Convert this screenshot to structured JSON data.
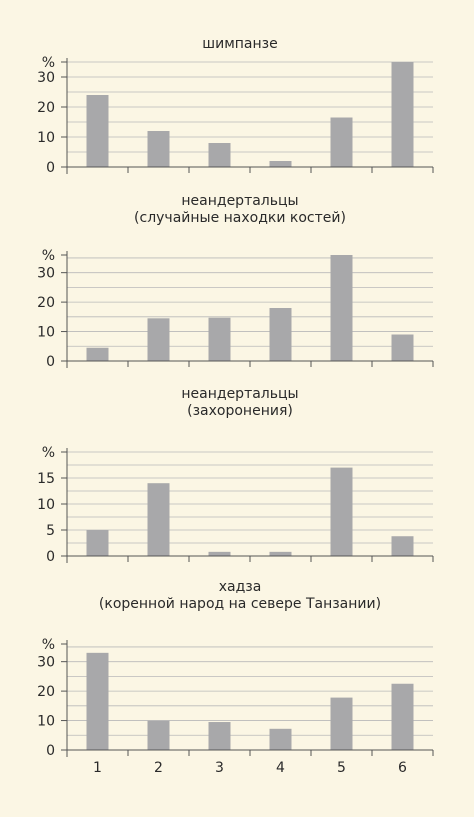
{
  "chart_data": [
    {
      "type": "bar",
      "title": [
        "шимпанзе"
      ],
      "ylabel": "%",
      "categories": [
        "1",
        "2",
        "3",
        "4",
        "5",
        "6"
      ],
      "values": [
        24,
        12,
        8,
        2,
        16.5,
        35
      ],
      "ylim": [
        0,
        35
      ],
      "yticks": [
        0,
        10,
        20,
        30
      ],
      "grid": true,
      "show_x_tick_labels": false
    },
    {
      "type": "bar",
      "title": [
        "неандертальцы",
        "(случайные находки костей)"
      ],
      "ylabel": "%",
      "categories": [
        "1",
        "2",
        "3",
        "4",
        "5",
        "6"
      ],
      "values": [
        4.5,
        14.5,
        14.7,
        18,
        36,
        9
      ],
      "ylim": [
        0,
        36
      ],
      "yticks": [
        0,
        10,
        20,
        30
      ],
      "grid": true,
      "show_x_tick_labels": false
    },
    {
      "type": "bar",
      "title": [
        "неандертальцы",
        "(захоронения)"
      ],
      "ylabel": "%",
      "categories": [
        "1",
        "2",
        "3",
        "4",
        "5",
        "6"
      ],
      "values": [
        5,
        14,
        0.8,
        0.8,
        17,
        3.8
      ],
      "ylim": [
        0,
        20
      ],
      "yticks": [
        0,
        5,
        10,
        15
      ],
      "grid": true,
      "show_x_tick_labels": false
    },
    {
      "type": "bar",
      "title": [
        "хадза",
        "(коренной народ на севере Танзании)"
      ],
      "ylabel": "%",
      "categories": [
        "1",
        "2",
        "3",
        "4",
        "5",
        "6"
      ],
      "values": [
        33,
        10,
        9.5,
        7.2,
        17.8,
        22.5
      ],
      "ylim": [
        0,
        36
      ],
      "yticks": [
        0,
        10,
        20,
        30
      ],
      "grid": true,
      "show_x_tick_labels": true
    }
  ],
  "colors": {
    "bar": "#a8a8aa",
    "grid": "#b9b9b9",
    "axis": "#555555",
    "text": "#2a2a2a"
  }
}
